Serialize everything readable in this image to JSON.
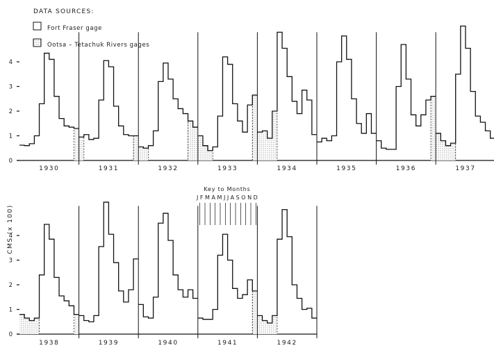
{
  "header": {
    "data_sources_title": "DATA SOURCES:",
    "legend": [
      {
        "label": "Fort Fraser gage",
        "pattern": "blank"
      },
      {
        "label": "Ootsa – Tetachuk Rivers gages",
        "pattern": "stippled"
      }
    ]
  },
  "key": {
    "title": "Key to Months",
    "letters": "JFMAMJJASOND"
  },
  "chart_data": [
    {
      "type": "line",
      "panel": "top",
      "ylabel": "CMS (x 100)",
      "yticks": [
        "0",
        "1",
        "2",
        "3",
        "4"
      ],
      "ylim": [
        0,
        5
      ],
      "series": [
        {
          "year": "1930",
          "values": [
            0.62,
            0.6,
            0.68,
            1.0,
            2.3,
            4.35,
            4.1,
            2.6,
            1.7,
            1.4,
            1.35,
            1.3
          ],
          "stippled_months": [
            11
          ]
        },
        {
          "year": "1931",
          "values": [
            0.95,
            1.05,
            0.85,
            0.9,
            2.45,
            4.05,
            3.8,
            2.2,
            1.4,
            1.05,
            1.0,
            1.0
          ],
          "stippled_months": [
            0,
            11
          ]
        },
        {
          "year": "1932",
          "values": [
            0.55,
            0.5,
            0.6,
            1.2,
            3.2,
            3.95,
            3.3,
            2.5,
            2.1,
            1.9,
            1.6,
            1.35
          ],
          "stippled_months": [
            0,
            1,
            10,
            11
          ]
        },
        {
          "year": "1933",
          "values": [
            1.0,
            0.6,
            0.4,
            0.55,
            1.8,
            4.2,
            3.9,
            2.3,
            1.6,
            1.15,
            2.25,
            2.65
          ],
          "stippled_months": [
            0,
            1,
            2,
            11
          ]
        },
        {
          "year": "1934",
          "values": [
            1.15,
            1.2,
            0.9,
            2.0,
            5.2,
            4.55,
            3.4,
            2.4,
            1.9,
            2.85,
            2.45,
            1.05
          ],
          "stippled_months": [
            0,
            1,
            2,
            3
          ]
        },
        {
          "year": "1935",
          "values": [
            0.75,
            0.9,
            0.8,
            1.0,
            4.0,
            5.05,
            4.1,
            2.5,
            1.5,
            1.1,
            1.9,
            1.1
          ],
          "stippled_months": []
        },
        {
          "year": "1936",
          "values": [
            0.8,
            0.5,
            0.45,
            0.45,
            3.0,
            4.7,
            3.3,
            1.85,
            1.4,
            1.85,
            2.45,
            2.6
          ],
          "stippled_months": [
            11
          ]
        },
        {
          "year": "1937",
          "values": [
            1.1,
            0.8,
            0.6,
            0.7,
            3.5,
            5.45,
            4.55,
            2.8,
            1.8,
            1.55,
            1.2,
            0.9
          ],
          "stippled_months": [
            0,
            1,
            2,
            3
          ]
        }
      ]
    },
    {
      "type": "line",
      "panel": "bottom",
      "ylabel": "CMS (x 100)",
      "yticks": [
        "0",
        "1",
        "2",
        "3",
        "4"
      ],
      "ylim": [
        0,
        5
      ],
      "series": [
        {
          "year": "1938",
          "values": [
            0.8,
            0.65,
            0.55,
            0.65,
            2.4,
            4.45,
            3.85,
            2.3,
            1.55,
            1.35,
            1.15,
            0.8
          ],
          "stippled_months": [
            0,
            1,
            2,
            3,
            11
          ]
        },
        {
          "year": "1939",
          "values": [
            0.75,
            0.55,
            0.5,
            0.75,
            3.55,
            5.35,
            4.05,
            2.9,
            1.75,
            1.3,
            1.8,
            3.05
          ],
          "stippled_months": []
        },
        {
          "year": "1940",
          "values": [
            1.2,
            0.7,
            0.65,
            1.5,
            4.5,
            4.9,
            3.8,
            2.4,
            1.8,
            1.5,
            1.8,
            1.45
          ],
          "stippled_months": []
        },
        {
          "year": "1941",
          "values": [
            0.65,
            0.6,
            0.6,
            1.0,
            3.2,
            4.05,
            3.0,
            1.85,
            1.45,
            1.6,
            2.2,
            1.75
          ],
          "stippled_months": [
            11
          ]
        },
        {
          "year": "1942",
          "values": [
            0.75,
            0.55,
            0.45,
            0.75,
            3.85,
            5.05,
            3.95,
            2.0,
            1.45,
            1.0,
            1.05,
            0.65
          ],
          "stippled_months": [
            0,
            1,
            2,
            3
          ]
        }
      ]
    }
  ]
}
